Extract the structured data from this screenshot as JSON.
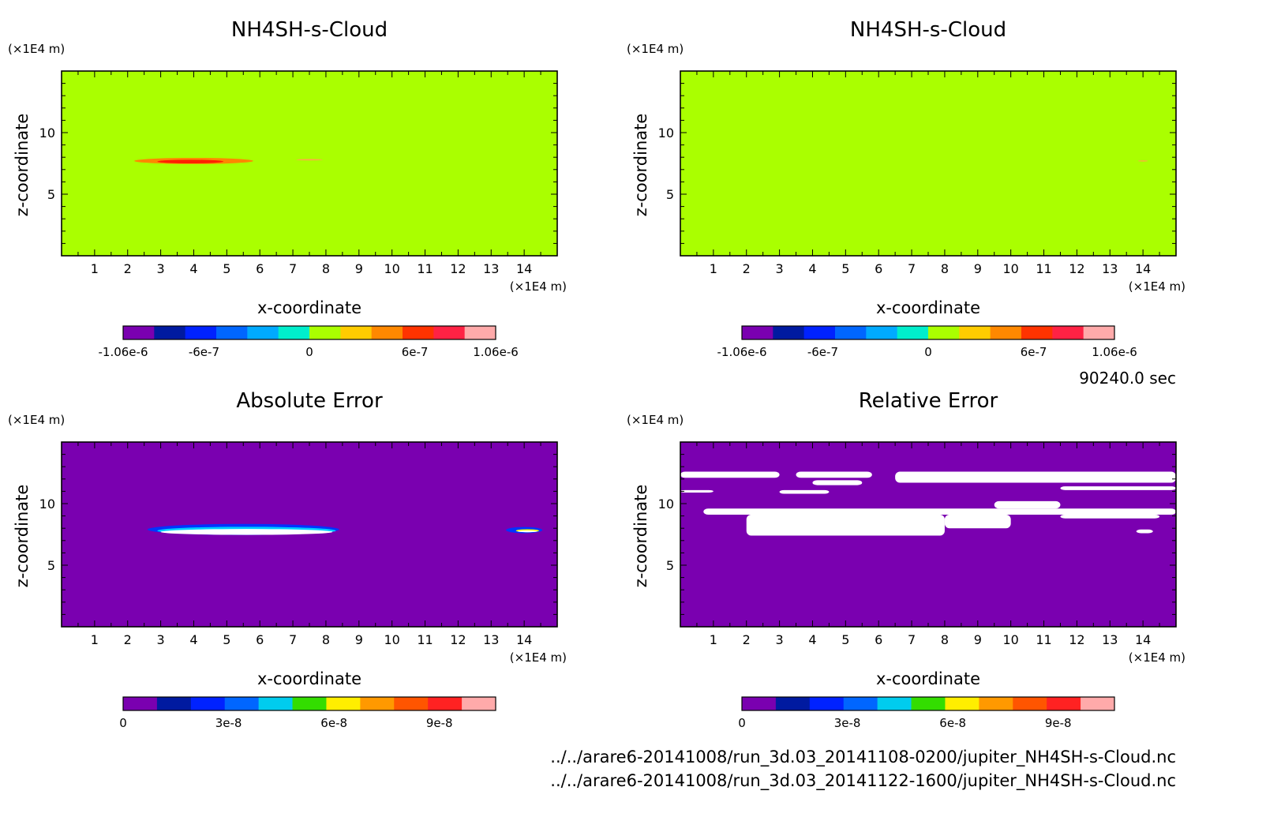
{
  "footer": {
    "time_label": "90240.0 sec",
    "file1": "../../arare6-20141008/run_3d.03_20141108-0200/jupiter_NH4SH-s-Cloud.nc",
    "file2": "../../arare6-20141008/run_3d.03_20141122-1600/jupiter_NH4SH-s-Cloud.nc"
  },
  "chart_data": [
    {
      "type": "heatmap",
      "title": "NH4SH-s-Cloud",
      "xlabel": "x-coordinate",
      "ylabel": "z-coordinate",
      "x_unit": "(×1E4 m)",
      "y_unit": "(×1E4 m)",
      "xlim": [
        0,
        15
      ],
      "ylim": [
        0,
        15
      ],
      "x_ticks": [
        1,
        2,
        3,
        4,
        5,
        6,
        7,
        8,
        9,
        10,
        11,
        12,
        13,
        14
      ],
      "y_ticks": [
        5,
        10
      ],
      "background_color": "#aaff00",
      "features": [
        {
          "shape": "ellipse",
          "x": 4.0,
          "z": 7.7,
          "rx": 1.8,
          "rz": 0.25,
          "color": "#ff8800"
        },
        {
          "shape": "ellipse",
          "x": 3.9,
          "z": 7.65,
          "rx": 1.0,
          "rz": 0.15,
          "color": "#ff2000"
        },
        {
          "shape": "ellipse",
          "x": 7.5,
          "z": 7.8,
          "rx": 0.4,
          "rz": 0.06,
          "color": "#ffaa44"
        }
      ],
      "colorbar": {
        "colors": [
          "#7a00b0",
          "#001aa0",
          "#0022ff",
          "#0066ff",
          "#00aaff",
          "#00eecc",
          "#aaff00",
          "#ffcc00",
          "#ff8800",
          "#ff3300",
          "#ff2244",
          "#ffaaaa"
        ],
        "tick_values": [
          -1.06e-06,
          -6e-07,
          0,
          6e-07,
          1.06e-06
        ],
        "tick_labels": [
          "-1.06e-6",
          "-6e-7",
          "0",
          "6e-7",
          "1.06e-6"
        ],
        "range": [
          -1.06e-06,
          1.06e-06
        ]
      }
    },
    {
      "type": "heatmap",
      "title": "NH4SH-s-Cloud",
      "xlabel": "x-coordinate",
      "ylabel": "z-coordinate",
      "x_unit": "(×1E4 m)",
      "y_unit": "(×1E4 m)",
      "xlim": [
        0,
        15
      ],
      "ylim": [
        0,
        15
      ],
      "x_ticks": [
        1,
        2,
        3,
        4,
        5,
        6,
        7,
        8,
        9,
        10,
        11,
        12,
        13,
        14
      ],
      "y_ticks": [
        5,
        10
      ],
      "background_color": "#aaff00",
      "features": [
        {
          "shape": "ellipse",
          "x": 14.0,
          "z": 7.7,
          "rx": 0.15,
          "rz": 0.05,
          "color": "#ffaa44"
        }
      ],
      "colorbar": {
        "colors": [
          "#7a00b0",
          "#001aa0",
          "#0022ff",
          "#0066ff",
          "#00aaff",
          "#00eecc",
          "#aaff00",
          "#ffcc00",
          "#ff8800",
          "#ff3300",
          "#ff2244",
          "#ffaaaa"
        ],
        "tick_values": [
          -1.06e-06,
          -6e-07,
          0,
          6e-07,
          1.06e-06
        ],
        "tick_labels": [
          "-1.06e-6",
          "-6e-7",
          "0",
          "6e-7",
          "1.06e-6"
        ],
        "range": [
          -1.06e-06,
          1.06e-06
        ]
      }
    },
    {
      "type": "heatmap",
      "title": "Absolute Error",
      "xlabel": "x-coordinate",
      "ylabel": "z-coordinate",
      "x_unit": "(×1E4 m)",
      "y_unit": "(×1E4 m)",
      "xlim": [
        0,
        15
      ],
      "ylim": [
        0,
        15
      ],
      "x_ticks": [
        1,
        2,
        3,
        4,
        5,
        6,
        7,
        8,
        9,
        10,
        11,
        12,
        13,
        14
      ],
      "y_ticks": [
        5,
        10
      ],
      "background_color": "#7a00b0",
      "features": [
        {
          "shape": "ellipse",
          "x": 5.5,
          "z": 7.9,
          "rx": 2.9,
          "rz": 0.45,
          "color": "#0033ff"
        },
        {
          "shape": "ellipse",
          "x": 5.6,
          "z": 7.8,
          "rx": 2.7,
          "rz": 0.32,
          "color": "#00ccff"
        },
        {
          "shape": "ellipse",
          "x": 5.6,
          "z": 7.7,
          "rx": 2.6,
          "rz": 0.24,
          "color": "#ffffff"
        },
        {
          "shape": "ellipse",
          "x": 14.0,
          "z": 7.85,
          "rx": 0.55,
          "rz": 0.25,
          "color": "#0033ff"
        },
        {
          "shape": "ellipse",
          "x": 14.1,
          "z": 7.8,
          "rx": 0.35,
          "rz": 0.12,
          "color": "#ffff00"
        },
        {
          "shape": "ellipse",
          "x": 14.1,
          "z": 7.75,
          "rx": 0.3,
          "rz": 0.07,
          "color": "#ffffff"
        }
      ],
      "colorbar": {
        "colors": [
          "#7a00b0",
          "#001aa0",
          "#0022ff",
          "#0066ff",
          "#00ccee",
          "#33dd00",
          "#ffee00",
          "#ff9900",
          "#ff5500",
          "#ff2222",
          "#ffaaaa"
        ],
        "tick_values": [
          0,
          3e-08,
          6e-08,
          9e-08
        ],
        "tick_labels": [
          "0",
          "3e-8",
          "6e-8",
          "9e-8"
        ],
        "range": [
          0,
          1.06e-07
        ]
      }
    },
    {
      "type": "heatmap",
      "title": "Relative Error",
      "xlabel": "x-coordinate",
      "ylabel": "z-coordinate",
      "x_unit": "(×1E4 m)",
      "y_unit": "(×1E4 m)",
      "xlim": [
        0,
        15
      ],
      "ylim": [
        0,
        15
      ],
      "x_ticks": [
        1,
        2,
        3,
        4,
        5,
        6,
        7,
        8,
        9,
        10,
        11,
        12,
        13,
        14
      ],
      "y_ticks": [
        5,
        10
      ],
      "background_color": "#7a00b0",
      "features": [
        {
          "shape": "rect",
          "x0": 0.0,
          "z0": 12.1,
          "x1": 3.0,
          "z1": 12.6,
          "color": "#ffffff"
        },
        {
          "shape": "rect",
          "x0": 3.5,
          "z0": 12.1,
          "x1": 5.8,
          "z1": 12.6,
          "color": "#ffffff"
        },
        {
          "shape": "rect",
          "x0": 6.5,
          "z0": 11.7,
          "x1": 15.0,
          "z1": 12.6,
          "color": "#ffffff"
        },
        {
          "shape": "rect",
          "x0": 4.0,
          "z0": 11.5,
          "x1": 5.5,
          "z1": 11.9,
          "color": "#ffffff"
        },
        {
          "shape": "rect",
          "x0": 0.0,
          "z0": 10.9,
          "x1": 1.0,
          "z1": 11.1,
          "color": "#ffffff"
        },
        {
          "shape": "rect",
          "x0": 3.0,
          "z0": 10.8,
          "x1": 4.5,
          "z1": 11.1,
          "color": "#ffffff"
        },
        {
          "shape": "rect",
          "x0": 11.5,
          "z0": 11.1,
          "x1": 15.0,
          "z1": 11.4,
          "color": "#ffffff"
        },
        {
          "shape": "rect",
          "x0": 0.7,
          "z0": 9.1,
          "x1": 15.0,
          "z1": 9.6,
          "color": "#ffffff"
        },
        {
          "shape": "rect",
          "x0": 2.0,
          "z0": 7.4,
          "x1": 8.0,
          "z1": 9.1,
          "color": "#ffffff"
        },
        {
          "shape": "rect",
          "x0": 8.0,
          "z0": 8.0,
          "x1": 10.0,
          "z1": 9.1,
          "color": "#ffffff"
        },
        {
          "shape": "rect",
          "x0": 11.5,
          "z0": 8.8,
          "x1": 14.5,
          "z1": 9.1,
          "color": "#ffffff"
        },
        {
          "shape": "rect",
          "x0": 9.5,
          "z0": 9.6,
          "x1": 11.5,
          "z1": 10.2,
          "color": "#ffffff"
        },
        {
          "shape": "rect",
          "x0": 13.8,
          "z0": 7.6,
          "x1": 14.3,
          "z1": 7.9,
          "color": "#ffffff"
        }
      ],
      "colorbar": {
        "colors": [
          "#7a00b0",
          "#001aa0",
          "#0022ff",
          "#0066ff",
          "#00ccee",
          "#33dd00",
          "#ffee00",
          "#ff9900",
          "#ff5500",
          "#ff2222",
          "#ffaaaa"
        ],
        "tick_values": [
          0,
          3e-08,
          6e-08,
          9e-08
        ],
        "tick_labels": [
          "0",
          "3e-8",
          "6e-8",
          "9e-8"
        ],
        "range": [
          0,
          1.06e-07
        ]
      }
    }
  ]
}
